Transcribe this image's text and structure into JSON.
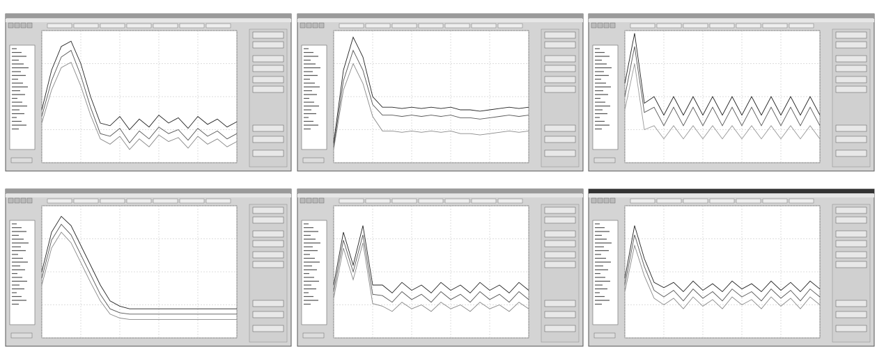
{
  "chart_data": [
    {
      "type": "line",
      "xlim": [
        0,
        20
      ],
      "ylim": [
        0,
        100
      ],
      "xticks": [
        0,
        4,
        8,
        12,
        16,
        20
      ],
      "yticks": [
        0,
        25,
        50,
        75,
        100
      ],
      "grid": true,
      "x": [
        0,
        1,
        2,
        3,
        4,
        5,
        6,
        7,
        8,
        9,
        10,
        11,
        12,
        13,
        14,
        15,
        16,
        17,
        18,
        19,
        20
      ],
      "series": [
        {
          "color": "#222222",
          "values": [
            40,
            70,
            88,
            92,
            75,
            50,
            30,
            28,
            35,
            25,
            33,
            27,
            36,
            30,
            34,
            26,
            35,
            29,
            33,
            27,
            31
          ]
        },
        {
          "color": "#555555",
          "values": [
            35,
            62,
            80,
            85,
            66,
            42,
            22,
            20,
            26,
            15,
            24,
            18,
            27,
            22,
            25,
            17,
            26,
            20,
            24,
            18,
            22
          ]
        },
        {
          "color": "#888888",
          "values": [
            30,
            55,
            72,
            76,
            58,
            36,
            18,
            14,
            20,
            10,
            18,
            12,
            21,
            16,
            19,
            11,
            20,
            14,
            18,
            12,
            16
          ]
        }
      ]
    },
    {
      "type": "line",
      "xlim": [
        0,
        20
      ],
      "ylim": [
        0,
        100
      ],
      "xticks": [
        0,
        4,
        8,
        12,
        16,
        20
      ],
      "yticks": [
        0,
        25,
        50,
        75,
        100
      ],
      "grid": true,
      "x": [
        0,
        1,
        2,
        3,
        4,
        5,
        6,
        7,
        8,
        9,
        10,
        11,
        12,
        13,
        14,
        15,
        16,
        17,
        18,
        19,
        20
      ],
      "series": [
        {
          "color": "#222222",
          "values": [
            15,
            70,
            95,
            80,
            50,
            42,
            42,
            41,
            42,
            41,
            42,
            41,
            42,
            40,
            40,
            39,
            40,
            41,
            42,
            41,
            42
          ]
        },
        {
          "color": "#555555",
          "values": [
            12,
            62,
            85,
            70,
            44,
            36,
            36,
            35,
            36,
            35,
            36,
            35,
            36,
            34,
            34,
            33,
            34,
            35,
            36,
            35,
            36
          ]
        },
        {
          "color": "#888888",
          "values": [
            10,
            55,
            75,
            60,
            35,
            24,
            24,
            23,
            24,
            23,
            24,
            23,
            24,
            22,
            22,
            21,
            22,
            23,
            24,
            23,
            24
          ]
        }
      ]
    },
    {
      "type": "line",
      "xlim": [
        0,
        20
      ],
      "ylim": [
        0,
        100
      ],
      "xticks": [
        0,
        4,
        8,
        12,
        16,
        20
      ],
      "yticks": [
        0,
        25,
        50,
        75,
        100
      ],
      "grid": true,
      "x": [
        0,
        1,
        2,
        3,
        4,
        5,
        6,
        7,
        8,
        9,
        10,
        11,
        12,
        13,
        14,
        15,
        16,
        17,
        18,
        19,
        20
      ],
      "series": [
        {
          "color": "#222222",
          "values": [
            60,
            98,
            45,
            50,
            36,
            50,
            36,
            50,
            36,
            50,
            36,
            50,
            36,
            50,
            36,
            50,
            36,
            50,
            36,
            50,
            36
          ]
        },
        {
          "color": "#555555",
          "values": [
            50,
            88,
            38,
            42,
            28,
            42,
            28,
            42,
            28,
            42,
            28,
            42,
            28,
            42,
            28,
            42,
            28,
            42,
            28,
            42,
            28
          ]
        },
        {
          "color": "#999999",
          "values": [
            40,
            75,
            25,
            28,
            18,
            28,
            18,
            28,
            18,
            28,
            18,
            28,
            18,
            28,
            18,
            28,
            18,
            28,
            18,
            28,
            18
          ]
        }
      ]
    },
    {
      "type": "line",
      "xlim": [
        0,
        20
      ],
      "ylim": [
        0,
        100
      ],
      "xticks": [
        0,
        4,
        8,
        12,
        16,
        20
      ],
      "yticks": [
        0,
        25,
        50,
        75,
        100
      ],
      "grid": true,
      "x": [
        0,
        1,
        2,
        3,
        4,
        5,
        6,
        7,
        8,
        9,
        10,
        11,
        12,
        13,
        14,
        15,
        16,
        17,
        18,
        19,
        20
      ],
      "series": [
        {
          "color": "#222222",
          "values": [
            50,
            80,
            92,
            85,
            70,
            55,
            40,
            28,
            24,
            22,
            22,
            22,
            22,
            22,
            22,
            22,
            22,
            22,
            22,
            22,
            22
          ]
        },
        {
          "color": "#555555",
          "values": [
            45,
            74,
            86,
            78,
            63,
            48,
            33,
            22,
            19,
            18,
            18,
            18,
            18,
            18,
            18,
            18,
            18,
            18,
            18,
            18,
            18
          ]
        },
        {
          "color": "#888888",
          "values": [
            40,
            68,
            80,
            72,
            57,
            42,
            28,
            18,
            15,
            14,
            14,
            14,
            14,
            14,
            14,
            14,
            14,
            14,
            14,
            14,
            14
          ]
        }
      ]
    },
    {
      "type": "line",
      "xlim": [
        0,
        20
      ],
      "ylim": [
        0,
        100
      ],
      "xticks": [
        0,
        4,
        8,
        12,
        16,
        20
      ],
      "yticks": [
        0,
        25,
        50,
        75,
        100
      ],
      "grid": true,
      "x": [
        0,
        1,
        2,
        3,
        4,
        5,
        6,
        7,
        8,
        9,
        10,
        11,
        12,
        13,
        14,
        15,
        16,
        17,
        18,
        19,
        20
      ],
      "series": [
        {
          "color": "#222222",
          "values": [
            40,
            80,
            55,
            85,
            40,
            40,
            34,
            42,
            36,
            40,
            34,
            42,
            36,
            40,
            34,
            42,
            36,
            40,
            34,
            42,
            36
          ]
        },
        {
          "color": "#555555",
          "values": [
            35,
            74,
            50,
            78,
            33,
            32,
            27,
            35,
            29,
            33,
            27,
            35,
            29,
            33,
            27,
            35,
            29,
            33,
            27,
            35,
            29
          ]
        },
        {
          "color": "#888888",
          "values": [
            30,
            68,
            44,
            72,
            26,
            24,
            20,
            27,
            22,
            25,
            20,
            27,
            22,
            25,
            20,
            27,
            22,
            25,
            20,
            27,
            22
          ]
        }
      ]
    },
    {
      "type": "line",
      "xlim": [
        0,
        20
      ],
      "ylim": [
        0,
        100
      ],
      "xticks": [
        0,
        4,
        8,
        12,
        16,
        20
      ],
      "yticks": [
        0,
        25,
        50,
        75,
        100
      ],
      "grid": true,
      "x": [
        0,
        1,
        2,
        3,
        4,
        5,
        6,
        7,
        8,
        9,
        10,
        11,
        12,
        13,
        14,
        15,
        16,
        17,
        18,
        19,
        20
      ],
      "series": [
        {
          "color": "#222222",
          "values": [
            45,
            85,
            60,
            42,
            38,
            42,
            35,
            43,
            36,
            41,
            35,
            43,
            37,
            41,
            35,
            43,
            36,
            42,
            35,
            43,
            37
          ]
        },
        {
          "color": "#555555",
          "values": [
            40,
            78,
            54,
            36,
            31,
            36,
            28,
            37,
            30,
            35,
            28,
            37,
            31,
            35,
            28,
            37,
            30,
            36,
            28,
            37,
            31
          ]
        },
        {
          "color": "#888888",
          "values": [
            35,
            70,
            47,
            30,
            25,
            30,
            22,
            31,
            24,
            29,
            22,
            31,
            25,
            29,
            22,
            31,
            24,
            30,
            22,
            31,
            25
          ]
        }
      ]
    }
  ]
}
